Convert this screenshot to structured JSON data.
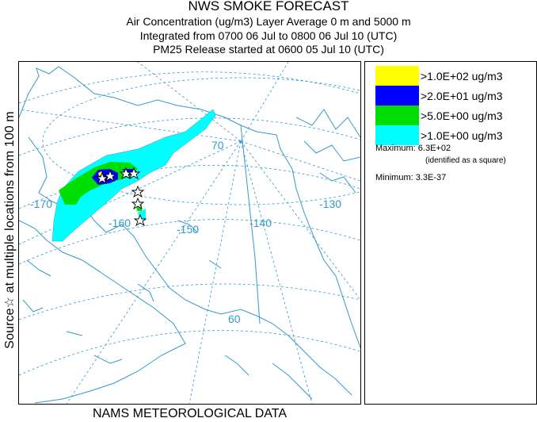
{
  "header": {
    "title": "NWS SMOKE FORECAST",
    "line1": "Air Concentration (ug/m3) Layer Average    0 m and  5000 m",
    "line2": "Integrated from 0700 06 Jul to 0800 06 Jul 10 (UTC)",
    "line3": "PM25 Release started at 0600 05 Jul 10 (UTC)"
  },
  "side_label": "Source☆  at multiple locations    from   100 m",
  "bottom_label": "NAMS METEOROLOGICAL DATA",
  "legend": {
    "items": [
      {
        "label": ">1.0E+02 ug/m3",
        "color": "#ffff00"
      },
      {
        "label": ">2.0E+01 ug/m3",
        "color": "#0000ff"
      },
      {
        "label": ">5.0E+00 ug/m3",
        "color": "#00dd00"
      },
      {
        "label": ">1.0E+00 ug/m3",
        "color": "#00ffff"
      }
    ],
    "maximum": "Maximum: 6.3E+02",
    "maximum_note": "(identified as a square)",
    "minimum": "Minimum: 3.3E-37"
  },
  "map": {
    "grid_labels": [
      "70",
      "-170",
      "-160",
      "-150",
      "-140",
      "-130",
      "60"
    ],
    "coast_color": "#3399cc",
    "grid_color": "#3399cc"
  }
}
